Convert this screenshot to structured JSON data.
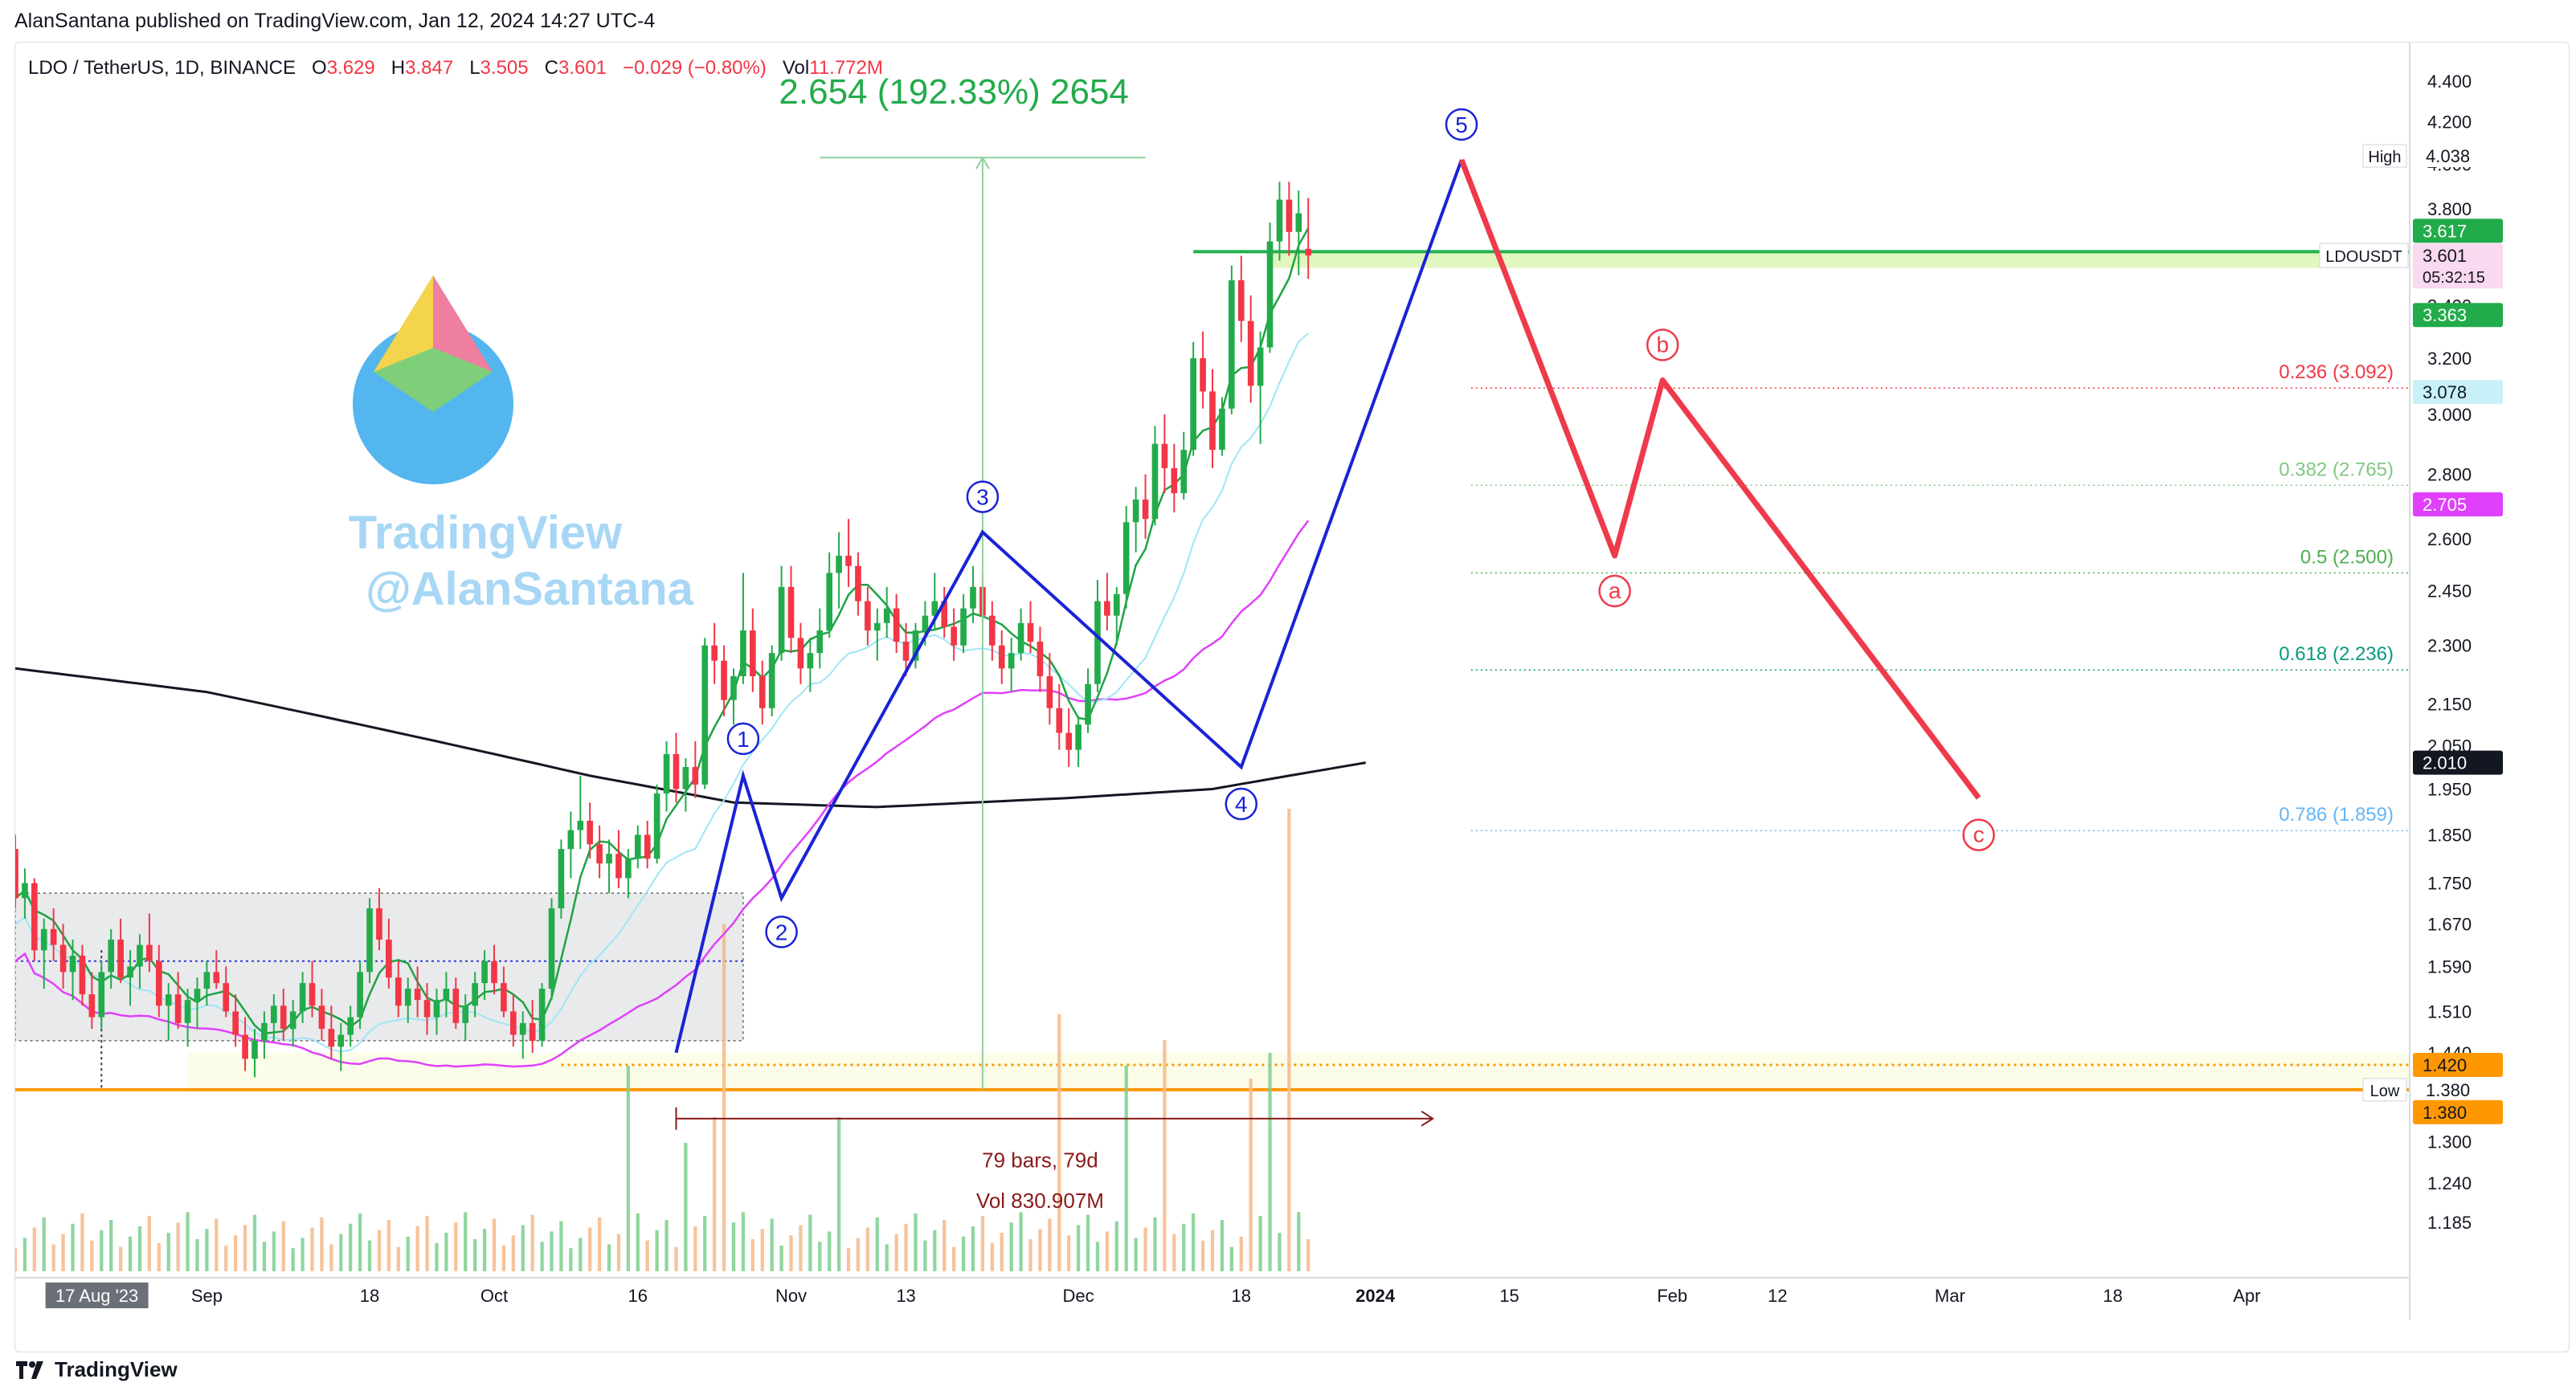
{
  "published": "AlanSantana published on TradingView.com, Jan 12, 2024 14:27 UTC-4",
  "ohlc": {
    "symbol": "LDO / TetherUS, 1D, BINANCE",
    "o_label": "O",
    "o": "3.629",
    "h_label": "H",
    "h": "3.847",
    "l_label": "L",
    "l": "3.505",
    "c_label": "C",
    "c": "3.601",
    "change": "−0.029 (−0.80%)",
    "vol_label": "Vol",
    "vol": "11.772M"
  },
  "watermark": {
    "line1": "TradingView",
    "line2": "@AlanSantana"
  },
  "footer": "TradingView",
  "colors": {
    "up": "#22ab4a",
    "down": "#f23645",
    "wave": "#1a23d6",
    "projection": "#ee3a4a",
    "ma200": "#131722",
    "ma_fast": "#1fa344",
    "ma_mid": "#9ee6f6",
    "ma_slow": "#e040fb",
    "level": "#ff9800"
  },
  "chart_data": {
    "type": "candlestick",
    "y_scale": "log",
    "ylim": [
      1.12,
      4.6
    ],
    "x_range": [
      "2023-08-12",
      "2024-04-18"
    ],
    "y_ticks": [
      "4.400",
      "4.200",
      "4.000",
      "3.800",
      "3.600",
      "3.400",
      "3.200",
      "3.000",
      "2.800",
      "2.600",
      "2.450",
      "2.300",
      "2.150",
      "2.050",
      "1.950",
      "1.850",
      "1.750",
      "1.670",
      "1.590",
      "1.510",
      "1.440",
      "1.300",
      "1.240",
      "1.185"
    ],
    "x_ticks": [
      {
        "date": "2023-08-17",
        "label": "17 Aug '23",
        "highlight": true
      },
      {
        "date": "2023-09-01",
        "label": "Sep"
      },
      {
        "date": "2023-09-18",
        "label": "18"
      },
      {
        "date": "2023-10-01",
        "label": "Oct"
      },
      {
        "date": "2023-10-16",
        "label": "16"
      },
      {
        "date": "2023-11-01",
        "label": "Nov"
      },
      {
        "date": "2023-11-13",
        "label": "13"
      },
      {
        "date": "2023-12-01",
        "label": "Dec"
      },
      {
        "date": "2023-12-18",
        "label": "18"
      },
      {
        "date": "2024-01-01",
        "label": "2024",
        "bold": true
      },
      {
        "date": "2024-01-15",
        "label": "15"
      },
      {
        "date": "2024-02-01",
        "label": "Feb"
      },
      {
        "date": "2024-02-12",
        "label": "12"
      },
      {
        "date": "2024-03-01",
        "label": "Mar"
      },
      {
        "date": "2024-03-18",
        "label": "18"
      },
      {
        "date": "2024-04-01",
        "label": "Apr"
      }
    ],
    "candles_start": "2023-08-12",
    "candles": [
      [
        1.82,
        1.85,
        1.7,
        1.72
      ],
      [
        1.72,
        1.78,
        1.68,
        1.75
      ],
      [
        1.75,
        1.76,
        1.6,
        1.62
      ],
      [
        1.62,
        1.68,
        1.55,
        1.66
      ],
      [
        1.66,
        1.7,
        1.6,
        1.63
      ],
      [
        1.63,
        1.67,
        1.55,
        1.58
      ],
      [
        1.58,
        1.64,
        1.53,
        1.61
      ],
      [
        1.61,
        1.63,
        1.52,
        1.54
      ],
      [
        1.54,
        1.58,
        1.48,
        1.5
      ],
      [
        1.5,
        1.6,
        1.48,
        1.58
      ],
      [
        1.58,
        1.66,
        1.55,
        1.64
      ],
      [
        1.64,
        1.68,
        1.56,
        1.57
      ],
      [
        1.57,
        1.62,
        1.52,
        1.59
      ],
      [
        1.59,
        1.65,
        1.55,
        1.63
      ],
      [
        1.63,
        1.69,
        1.58,
        1.6
      ],
      [
        1.6,
        1.63,
        1.5,
        1.52
      ],
      [
        1.52,
        1.56,
        1.46,
        1.54
      ],
      [
        1.54,
        1.58,
        1.48,
        1.49
      ],
      [
        1.49,
        1.55,
        1.45,
        1.53
      ],
      [
        1.53,
        1.57,
        1.48,
        1.55
      ],
      [
        1.55,
        1.6,
        1.52,
        1.58
      ],
      [
        1.58,
        1.62,
        1.55,
        1.56
      ],
      [
        1.56,
        1.59,
        1.5,
        1.51
      ],
      [
        1.51,
        1.54,
        1.45,
        1.47
      ],
      [
        1.47,
        1.5,
        1.41,
        1.43
      ],
      [
        1.43,
        1.48,
        1.4,
        1.46
      ],
      [
        1.46,
        1.51,
        1.43,
        1.49
      ],
      [
        1.49,
        1.54,
        1.46,
        1.52
      ],
      [
        1.52,
        1.55,
        1.46,
        1.48
      ],
      [
        1.48,
        1.53,
        1.45,
        1.51
      ],
      [
        1.51,
        1.58,
        1.49,
        1.56
      ],
      [
        1.56,
        1.6,
        1.5,
        1.52
      ],
      [
        1.52,
        1.55,
        1.46,
        1.48
      ],
      [
        1.48,
        1.52,
        1.43,
        1.45
      ],
      [
        1.45,
        1.49,
        1.41,
        1.47
      ],
      [
        1.47,
        1.52,
        1.45,
        1.5
      ],
      [
        1.5,
        1.6,
        1.48,
        1.58
      ],
      [
        1.58,
        1.72,
        1.56,
        1.7
      ],
      [
        1.7,
        1.74,
        1.62,
        1.64
      ],
      [
        1.64,
        1.68,
        1.55,
        1.57
      ],
      [
        1.57,
        1.6,
        1.5,
        1.52
      ],
      [
        1.52,
        1.57,
        1.49,
        1.55
      ],
      [
        1.55,
        1.59,
        1.5,
        1.53
      ],
      [
        1.53,
        1.56,
        1.47,
        1.5
      ],
      [
        1.5,
        1.55,
        1.47,
        1.53
      ],
      [
        1.53,
        1.58,
        1.5,
        1.55
      ],
      [
        1.55,
        1.57,
        1.48,
        1.49
      ],
      [
        1.49,
        1.54,
        1.46,
        1.52
      ],
      [
        1.52,
        1.58,
        1.5,
        1.56
      ],
      [
        1.56,
        1.62,
        1.53,
        1.6
      ],
      [
        1.6,
        1.63,
        1.54,
        1.56
      ],
      [
        1.56,
        1.59,
        1.5,
        1.51
      ],
      [
        1.51,
        1.54,
        1.45,
        1.47
      ],
      [
        1.47,
        1.51,
        1.43,
        1.49
      ],
      [
        1.49,
        1.53,
        1.44,
        1.46
      ],
      [
        1.46,
        1.56,
        1.45,
        1.55
      ],
      [
        1.55,
        1.72,
        1.53,
        1.7
      ],
      [
        1.7,
        1.84,
        1.68,
        1.82
      ],
      [
        1.82,
        1.9,
        1.76,
        1.86
      ],
      [
        1.86,
        1.98,
        1.82,
        1.88
      ],
      [
        1.88,
        1.92,
        1.8,
        1.83
      ],
      [
        1.83,
        1.87,
        1.76,
        1.79
      ],
      [
        1.79,
        1.84,
        1.73,
        1.81
      ],
      [
        1.81,
        1.86,
        1.74,
        1.76
      ],
      [
        1.76,
        1.82,
        1.72,
        1.8
      ],
      [
        1.8,
        1.87,
        1.78,
        1.85
      ],
      [
        1.85,
        1.88,
        1.78,
        1.8
      ],
      [
        1.8,
        1.96,
        1.79,
        1.94
      ],
      [
        1.94,
        2.06,
        1.9,
        2.03
      ],
      [
        2.03,
        2.08,
        1.92,
        1.95
      ],
      [
        1.95,
        2.02,
        1.9,
        2.0
      ],
      [
        2.0,
        2.06,
        1.93,
        1.96
      ],
      [
        1.96,
        2.32,
        1.95,
        2.3
      ],
      [
        2.3,
        2.36,
        2.2,
        2.26
      ],
      [
        2.26,
        2.3,
        2.12,
        2.16
      ],
      [
        2.16,
        2.24,
        2.1,
        2.22
      ],
      [
        2.22,
        2.5,
        2.2,
        2.34
      ],
      [
        2.34,
        2.4,
        2.18,
        2.22
      ],
      [
        2.22,
        2.26,
        2.1,
        2.14
      ],
      [
        2.14,
        2.3,
        2.12,
        2.28
      ],
      [
        2.28,
        2.52,
        2.26,
        2.46
      ],
      [
        2.46,
        2.52,
        2.28,
        2.32
      ],
      [
        2.32,
        2.36,
        2.2,
        2.24
      ],
      [
        2.24,
        2.32,
        2.18,
        2.28
      ],
      [
        2.28,
        2.4,
        2.24,
        2.34
      ],
      [
        2.34,
        2.56,
        2.32,
        2.5
      ],
      [
        2.5,
        2.62,
        2.4,
        2.55
      ],
      [
        2.55,
        2.66,
        2.46,
        2.52
      ],
      [
        2.52,
        2.56,
        2.38,
        2.42
      ],
      [
        2.42,
        2.46,
        2.3,
        2.34
      ],
      [
        2.34,
        2.4,
        2.26,
        2.36
      ],
      [
        2.36,
        2.46,
        2.32,
        2.4
      ],
      [
        2.4,
        2.44,
        2.28,
        2.31
      ],
      [
        2.31,
        2.36,
        2.22,
        2.26
      ],
      [
        2.26,
        2.36,
        2.24,
        2.34
      ],
      [
        2.34,
        2.42,
        2.3,
        2.38
      ],
      [
        2.38,
        2.5,
        2.34,
        2.42
      ],
      [
        2.42,
        2.46,
        2.32,
        2.35
      ],
      [
        2.35,
        2.4,
        2.26,
        2.3
      ],
      [
        2.3,
        2.44,
        2.28,
        2.4
      ],
      [
        2.4,
        2.52,
        2.36,
        2.46
      ],
      [
        2.46,
        2.5,
        2.36,
        2.38
      ],
      [
        2.38,
        2.42,
        2.26,
        2.3
      ],
      [
        2.3,
        2.34,
        2.2,
        2.24
      ],
      [
        2.24,
        2.32,
        2.18,
        2.28
      ],
      [
        2.28,
        2.4,
        2.26,
        2.36
      ],
      [
        2.36,
        2.42,
        2.28,
        2.31
      ],
      [
        2.31,
        2.35,
        2.18,
        2.22
      ],
      [
        2.22,
        2.28,
        2.1,
        2.14
      ],
      [
        2.14,
        2.2,
        2.04,
        2.08
      ],
      [
        2.08,
        2.14,
        2.0,
        2.04
      ],
      [
        2.04,
        2.12,
        2.0,
        2.1
      ],
      [
        2.1,
        2.24,
        2.08,
        2.2
      ],
      [
        2.2,
        2.48,
        2.18,
        2.42
      ],
      [
        2.42,
        2.5,
        2.34,
        2.38
      ],
      [
        2.38,
        2.46,
        2.3,
        2.44
      ],
      [
        2.44,
        2.7,
        2.4,
        2.65
      ],
      [
        2.65,
        2.76,
        2.56,
        2.72
      ],
      [
        2.72,
        2.8,
        2.6,
        2.66
      ],
      [
        2.66,
        2.96,
        2.64,
        2.9
      ],
      [
        2.9,
        3.0,
        2.74,
        2.82
      ],
      [
        2.82,
        2.9,
        2.68,
        2.74
      ],
      [
        2.74,
        2.94,
        2.72,
        2.88
      ],
      [
        2.88,
        3.26,
        2.86,
        3.2
      ],
      [
        3.2,
        3.3,
        3.02,
        3.08
      ],
      [
        3.08,
        3.16,
        2.82,
        2.88
      ],
      [
        2.88,
        3.06,
        2.86,
        3.02
      ],
      [
        3.02,
        3.56,
        3.0,
        3.5
      ],
      [
        3.5,
        3.6,
        3.26,
        3.34
      ],
      [
        3.34,
        3.44,
        3.04,
        3.1
      ],
      [
        3.1,
        3.3,
        2.9,
        3.24
      ],
      [
        3.24,
        3.74,
        3.22,
        3.66
      ],
      [
        3.66,
        3.92,
        3.58,
        3.84
      ],
      [
        3.84,
        3.92,
        3.6,
        3.7
      ],
      [
        3.7,
        3.88,
        3.52,
        3.78
      ],
      [
        3.629,
        3.847,
        3.505,
        3.601
      ]
    ],
    "volume_note": "Volume bars shown at the bottom of the pane",
    "moving_averages": [
      {
        "name": "MA200",
        "color": "#131722"
      },
      {
        "name": "MA fast",
        "color": "#1fa344"
      },
      {
        "name": "MA mid",
        "color": "#9ee6f6"
      },
      {
        "name": "MA slow",
        "color": "#e040fb"
      }
    ],
    "elliott_waves": [
      {
        "label": "1",
        "date": "2023-10-27",
        "price": 1.98
      },
      {
        "label": "2",
        "date": "2023-10-31",
        "price": 1.72
      },
      {
        "label": "3",
        "date": "2023-11-21",
        "price": 2.62
      },
      {
        "label": "4",
        "date": "2023-12-18",
        "price": 2.0
      },
      {
        "label": "5",
        "date": "2024-01-10",
        "price": 4.02
      }
    ],
    "correction": [
      {
        "label": "a",
        "date": "2024-01-26",
        "price": 2.55
      },
      {
        "label": "b",
        "date": "2024-01-31",
        "price": 3.12
      },
      {
        "label": "c",
        "date": "2024-03-04",
        "price": 1.93
      }
    ],
    "fib_levels": [
      {
        "label": "0.236 (3.092)",
        "price": 3.092,
        "color": "#f23645"
      },
      {
        "label": "0.382 (2.765)",
        "price": 2.765,
        "color": "#81c784"
      },
      {
        "label": "0.5 (2.500)",
        "price": 2.5,
        "color": "#4caf50"
      },
      {
        "label": "0.618 (2.236)",
        "price": 2.236,
        "color": "#089981"
      },
      {
        "label": "0.786 (1.859)",
        "price": 1.859,
        "color": "#64b5f6"
      }
    ],
    "measure": {
      "label": "2.654 (192.33%) 2654",
      "date": "2023-11-21",
      "from": 1.38,
      "to": 4.03
    },
    "range_annotation": {
      "label": "79 bars, 79d",
      "vol": "Vol 830.907M",
      "from": "2023-10-20",
      "to": "2024-01-07"
    },
    "consolidation_box": {
      "from": "2023-08-12",
      "to": "2023-10-27",
      "top": 1.73,
      "bottom": 1.46,
      "mid": 1.6
    },
    "resistance_zone": {
      "from": "2023-12-21",
      "to": "2024-04-10",
      "top": 3.617,
      "bottom": 3.55
    },
    "price_labels": [
      {
        "text": "High",
        "value": "4.038",
        "price": 4.038,
        "style": "marker"
      },
      {
        "text": "",
        "value": "3.617",
        "price": 3.617,
        "style": "green"
      },
      {
        "text": "LDOUSDT",
        "value": "3.601",
        "price": 3.601,
        "style": "pink",
        "timer": "05:32:15"
      },
      {
        "text": "",
        "value": "3.363",
        "price": 3.363,
        "style": "green"
      },
      {
        "text": "",
        "value": "3.078",
        "price": 3.078,
        "style": "cyan"
      },
      {
        "text": "",
        "value": "2.705",
        "price": 2.705,
        "style": "magenta"
      },
      {
        "text": "",
        "value": "2.010",
        "price": 2.01,
        "style": "black"
      },
      {
        "text": "",
        "value": "1.420",
        "price": 1.42,
        "style": "orange"
      },
      {
        "text": "Low",
        "value": "1.380",
        "price": 1.38,
        "style": "marker"
      },
      {
        "text": "",
        "value": "1.380",
        "price": 1.38,
        "style": "orange"
      }
    ]
  }
}
